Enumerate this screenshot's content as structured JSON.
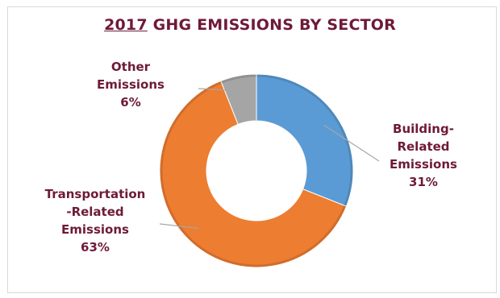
{
  "title": {
    "year": "2017",
    "rest": " GHG EMISSIONS BY SECTOR"
  },
  "colors": {
    "title": "#6e1a39",
    "building": "#5b9bd5",
    "transportation": "#ed7d31",
    "other": "#a5a5a5",
    "leader": "#a6a6a6"
  },
  "chart_data": {
    "type": "pie",
    "variant": "donut",
    "title": "2017 GHG EMISSIONS BY SECTOR",
    "legend": "none",
    "start_angle_deg": 0,
    "direction": "clockwise",
    "slices": [
      {
        "name": "Building-Related Emissions",
        "value": 31,
        "color": "#5b9bd5",
        "label_lines": [
          "Building-",
          "Related",
          "Emissions",
          "31%"
        ]
      },
      {
        "name": "Transportation-Related Emissions",
        "value": 63,
        "color": "#ed7d31",
        "label_lines": [
          "Transportation",
          "-Related",
          "Emissions",
          "63%"
        ]
      },
      {
        "name": "Other Emissions",
        "value": 6,
        "color": "#a5a5a5",
        "label_lines": [
          "Other",
          "Emissions",
          "6%"
        ]
      }
    ]
  }
}
